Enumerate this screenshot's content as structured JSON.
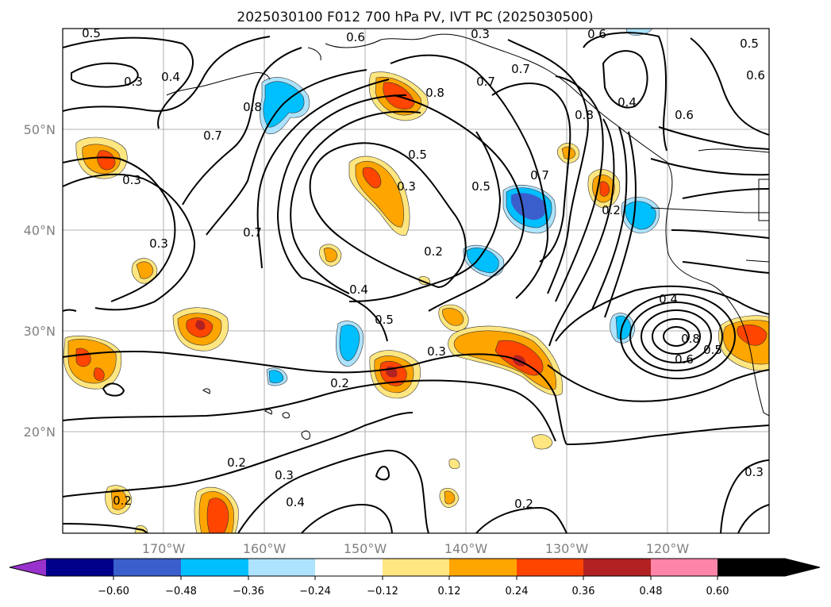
{
  "title": "2025030100 F012 700 hPa PV, IVT PC (2025030500)",
  "map": {
    "lon_labels": [
      "170°W",
      "160°W",
      "150°W",
      "140°W",
      "130°W",
      "120°W"
    ],
    "lat_labels": [
      "50°N",
      "40°N",
      "30°N",
      "20°N"
    ],
    "contour_labels": [
      "0.5",
      "0.6",
      "0.3",
      "0.6",
      "0.5",
      "0.4",
      "0.3",
      "0.8",
      "0.8",
      "0.7",
      "0.7",
      "0.8",
      "0.4",
      "0.6",
      "0.6",
      "0.7",
      "0.3",
      "0.5",
      "0.3",
      "0.5",
      "0.7",
      "0.2",
      "0.7",
      "0.3",
      "0.2",
      "0.4",
      "0.5",
      "0.4",
      "0.3",
      "0.2",
      "0.8",
      "0.6",
      "0.5",
      "0.2",
      "0.3",
      "0.4",
      "0.2",
      "0.2",
      "0.3"
    ]
  },
  "colorbar": {
    "ticks": [
      "−0.60",
      "−0.48",
      "−0.36",
      "−0.24",
      "−0.12",
      "0.12",
      "0.24",
      "0.36",
      "0.48",
      "0.60"
    ],
    "colors": [
      "#9932cc",
      "#00008b",
      "#3a5fcd",
      "#00bfff",
      "#ade3ff",
      "#ffffff",
      "#ffe680",
      "#ffa500",
      "#ff4500",
      "#b22222",
      "#ff85a8"
    ]
  },
  "fill_colors": {
    "pos_light": "#ffe680",
    "pos_mid": "#ffa500",
    "pos_strong": "#ff4500",
    "pos_max": "#b22222",
    "neg_light": "#ade3ff",
    "neg_mid": "#00bfff",
    "neg_strong": "#3a5fcd"
  }
}
